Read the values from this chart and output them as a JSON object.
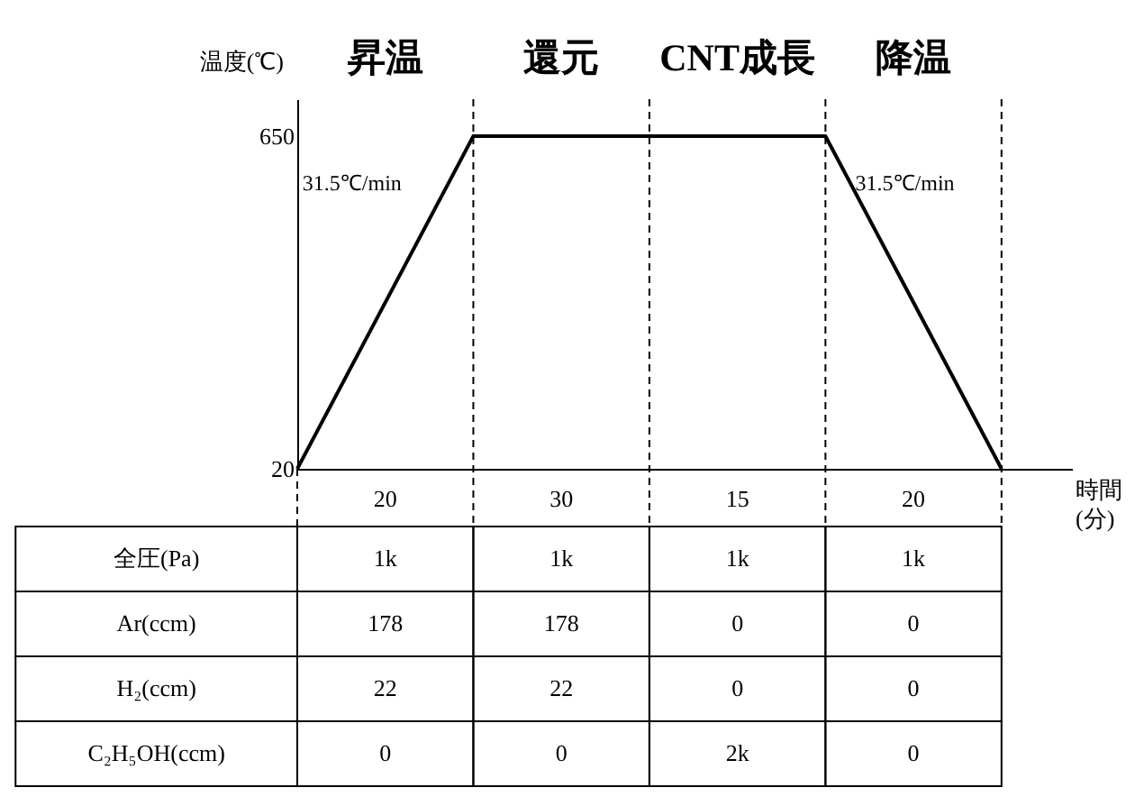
{
  "chart_data": [
    {
      "type": "line",
      "ylabel": "温度(℃)",
      "xlabel": "時間(分)",
      "categories": [
        null,
        null,
        null,
        null,
        null
      ],
      "series": [
        {
          "color": "#000000",
          "values": [
            20,
            650,
            650,
            650,
            20
          ]
        }
      ],
      "ylim": [
        20,
        720
      ],
      "yticks": [
        20,
        650
      ],
      "grid": "x",
      "line_style": "solid",
      "annotations": [
        "昇温",
        "還元",
        "CNT成長",
        "降温",
        "20",
        "30",
        "15",
        "20",
        "31.5℃/min",
        "31.5℃/min"
      ]
    },
    {
      "type": "other",
      "annotations": [
        "全圧(Pa)",
        "1k",
        "1k",
        "1k",
        "1k",
        "Ar(ccm)",
        "178",
        "178",
        "0",
        "0",
        "H₂(ccm)",
        "22",
        "22",
        "0",
        "0",
        "C₂H₅OH(ccm)",
        "0",
        "0",
        "2k",
        "0"
      ]
    }
  ]
}
